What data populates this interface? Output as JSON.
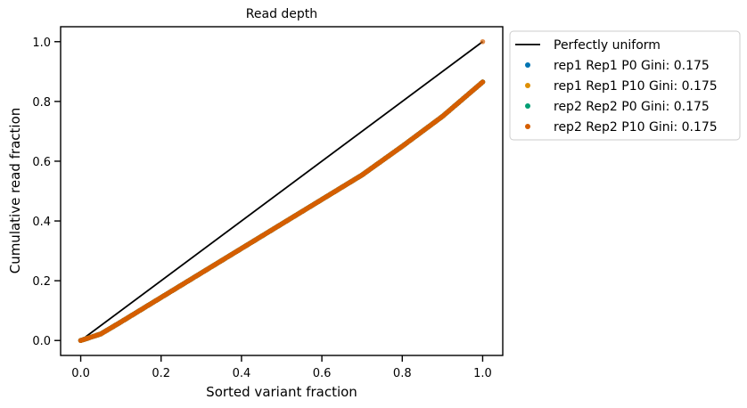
{
  "chart_data": {
    "type": "scatter",
    "title": "Read depth",
    "xlabel": "Sorted variant fraction",
    "ylabel": "Cumulative read fraction",
    "xlim": [
      -0.05,
      1.05
    ],
    "ylim": [
      -0.05,
      1.05
    ],
    "xticks": [
      0.0,
      0.2,
      0.4,
      0.6,
      0.8,
      1.0
    ],
    "yticks": [
      0.0,
      0.2,
      0.4,
      0.6,
      0.8,
      1.0
    ],
    "xtick_labels": [
      "0.0",
      "0.2",
      "0.4",
      "0.6",
      "0.8",
      "1.0"
    ],
    "ytick_labels": [
      "0.0",
      "0.2",
      "0.4",
      "0.6",
      "0.8",
      "1.0"
    ],
    "grid": false,
    "legend_position": "outside upper right",
    "reference_line": {
      "name": "Perfectly uniform",
      "color": "#000000",
      "points": [
        [
          0.0,
          0.0
        ],
        [
          1.0,
          1.0
        ]
      ]
    },
    "series": [
      {
        "name": "rep1 Rep1 P0 Gini: 0.175",
        "color": "#0173b2",
        "points": [
          [
            0.0,
            0.0
          ],
          [
            0.05,
            0.022
          ],
          [
            0.1,
            0.062
          ],
          [
            0.2,
            0.144
          ],
          [
            0.3,
            0.226
          ],
          [
            0.4,
            0.308
          ],
          [
            0.5,
            0.39
          ],
          [
            0.6,
            0.472
          ],
          [
            0.7,
            0.554
          ],
          [
            0.8,
            0.65
          ],
          [
            0.82,
            0.67
          ],
          [
            0.9,
            0.75
          ],
          [
            1.0,
            0.865
          ]
        ]
      },
      {
        "name": "rep1 Rep1 P10 Gini: 0.175",
        "color": "#de8f05",
        "points": [
          [
            0.0,
            0.0
          ],
          [
            0.05,
            0.022
          ],
          [
            0.1,
            0.062
          ],
          [
            0.2,
            0.144
          ],
          [
            0.3,
            0.226
          ],
          [
            0.4,
            0.308
          ],
          [
            0.5,
            0.39
          ],
          [
            0.6,
            0.472
          ],
          [
            0.7,
            0.554
          ],
          [
            0.8,
            0.65
          ],
          [
            0.82,
            0.67
          ],
          [
            0.9,
            0.75
          ],
          [
            1.0,
            0.865
          ]
        ]
      },
      {
        "name": "rep2 Rep2 P0 Gini: 0.175",
        "color": "#029e73",
        "points": [
          [
            0.0,
            0.0
          ],
          [
            0.05,
            0.022
          ],
          [
            0.1,
            0.062
          ],
          [
            0.2,
            0.144
          ],
          [
            0.3,
            0.226
          ],
          [
            0.4,
            0.308
          ],
          [
            0.5,
            0.39
          ],
          [
            0.6,
            0.472
          ],
          [
            0.7,
            0.554
          ],
          [
            0.8,
            0.65
          ],
          [
            0.82,
            0.67
          ],
          [
            0.9,
            0.75
          ],
          [
            1.0,
            0.865
          ]
        ]
      },
      {
        "name": "rep2 Rep2 P10 Gini: 0.175",
        "color": "#d55e00",
        "points": [
          [
            0.0,
            0.0
          ],
          [
            0.05,
            0.022
          ],
          [
            0.1,
            0.062
          ],
          [
            0.2,
            0.144
          ],
          [
            0.3,
            0.226
          ],
          [
            0.4,
            0.308
          ],
          [
            0.5,
            0.39
          ],
          [
            0.6,
            0.472
          ],
          [
            0.7,
            0.554
          ],
          [
            0.8,
            0.65
          ],
          [
            0.82,
            0.67
          ],
          [
            0.9,
            0.75
          ],
          [
            1.0,
            0.865
          ]
        ]
      }
    ],
    "endpoint": [
      1.0,
      1.0
    ]
  }
}
